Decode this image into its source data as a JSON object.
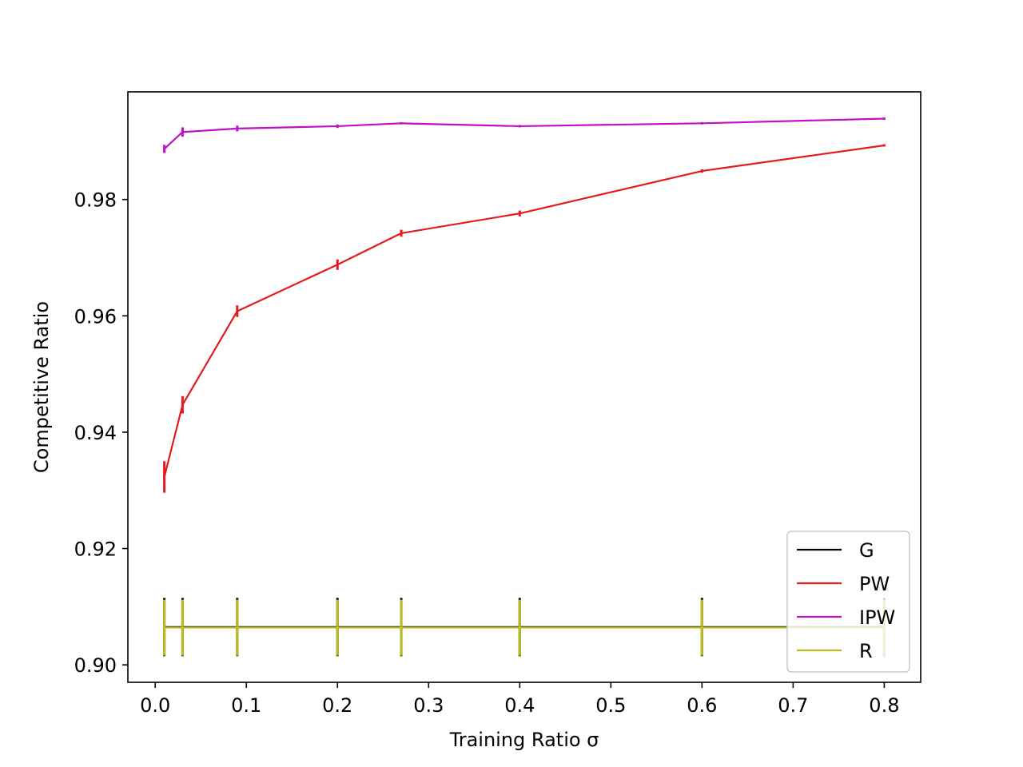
{
  "chart_data": {
    "type": "line",
    "xlabel": "Training Ratio σ",
    "ylabel": "Competitive Ratio",
    "xlim": [
      -0.03,
      0.84
    ],
    "ylim": [
      0.897,
      0.9985
    ],
    "xticks": [
      0.0,
      0.1,
      0.2,
      0.3,
      0.4,
      0.5,
      0.6,
      0.7,
      0.8
    ],
    "xtick_labels": [
      "0.0",
      "0.1",
      "0.2",
      "0.3",
      "0.4",
      "0.5",
      "0.6",
      "0.7",
      "0.8"
    ],
    "yticks": [
      0.9,
      0.92,
      0.94,
      0.96,
      0.98
    ],
    "ytick_labels": [
      "0.90",
      "0.92",
      "0.94",
      "0.96",
      "0.98"
    ],
    "grid": false,
    "legend_position": "bottom-right",
    "x": [
      0.01,
      0.03,
      0.09,
      0.2,
      0.27,
      0.4,
      0.6,
      0.8
    ],
    "series": [
      {
        "name": "G",
        "color": "#000000",
        "values": [
          0.9065,
          0.9065,
          0.9065,
          0.9065,
          0.9065,
          0.9065,
          0.9065,
          0.9065
        ],
        "errors": [
          0.005,
          0.005,
          0.005,
          0.005,
          0.005,
          0.005,
          0.005,
          0.005
        ]
      },
      {
        "name": "PW",
        "color": "#e41a1c",
        "values": [
          0.9323,
          0.9447,
          0.9608,
          0.9688,
          0.9742,
          0.9776,
          0.9849,
          0.9893
        ],
        "errors": [
          0.0027,
          0.0015,
          0.001,
          0.0009,
          0.0006,
          0.0005,
          0.0003,
          0.0002
        ]
      },
      {
        "name": "IPW",
        "color": "#c010c8",
        "values": [
          0.9887,
          0.9916,
          0.9922,
          0.9926,
          0.9931,
          0.9926,
          0.9931,
          0.9939
        ],
        "errors": [
          0.0007,
          0.0008,
          0.0005,
          0.0003,
          0.0002,
          0.0002,
          0.0002,
          0.0002
        ]
      },
      {
        "name": "R",
        "color": "#bcbd22",
        "values": [
          0.9064,
          0.9064,
          0.9064,
          0.9064,
          0.9064,
          0.9064,
          0.9064,
          0.9064
        ],
        "errors": [
          0.0048,
          0.0048,
          0.0048,
          0.0048,
          0.0048,
          0.0048,
          0.0048,
          0.0048
        ]
      }
    ]
  }
}
